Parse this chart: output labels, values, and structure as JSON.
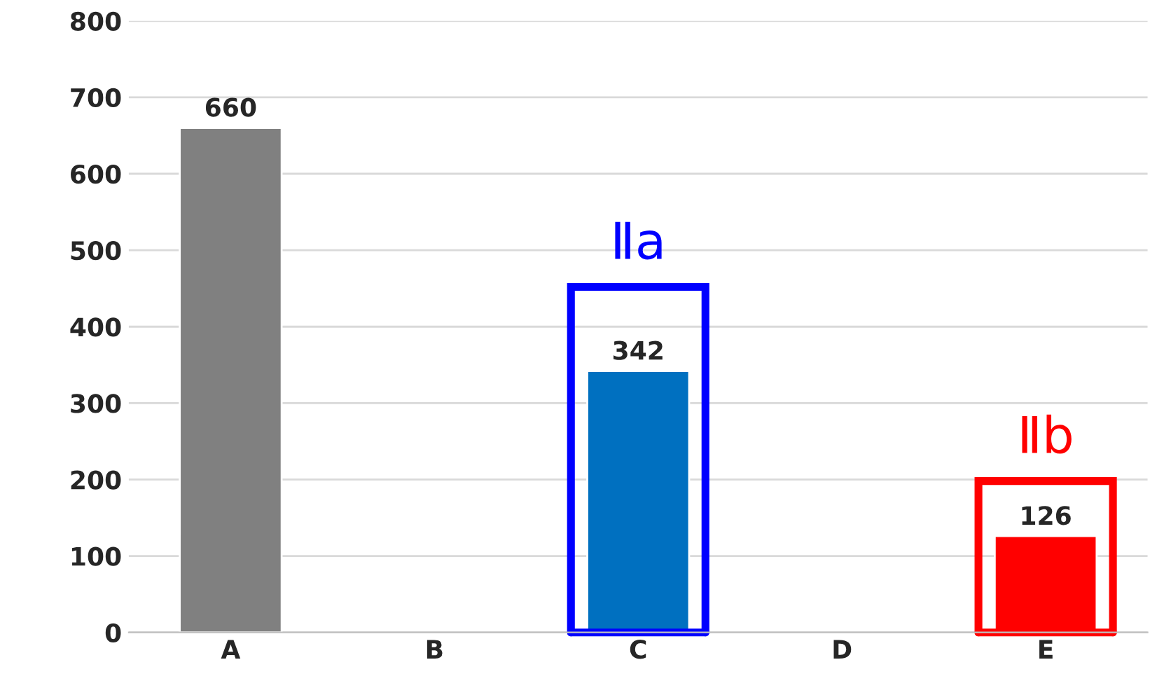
{
  "chart_data": {
    "type": "bar",
    "categories": [
      "A",
      "B",
      "C",
      "D",
      "E"
    ],
    "values": [
      660,
      null,
      342,
      null,
      126
    ],
    "colors": [
      "#808080",
      "#808080",
      "#0070c0",
      "#808080",
      "#ff0000"
    ],
    "ylim": [
      0,
      800
    ],
    "yticks": [
      0,
      100,
      200,
      300,
      400,
      500,
      600,
      700,
      800
    ],
    "grid": "y",
    "data_labels": true,
    "annotations": [
      "Ⅱa",
      "Ⅱb"
    ]
  }
}
